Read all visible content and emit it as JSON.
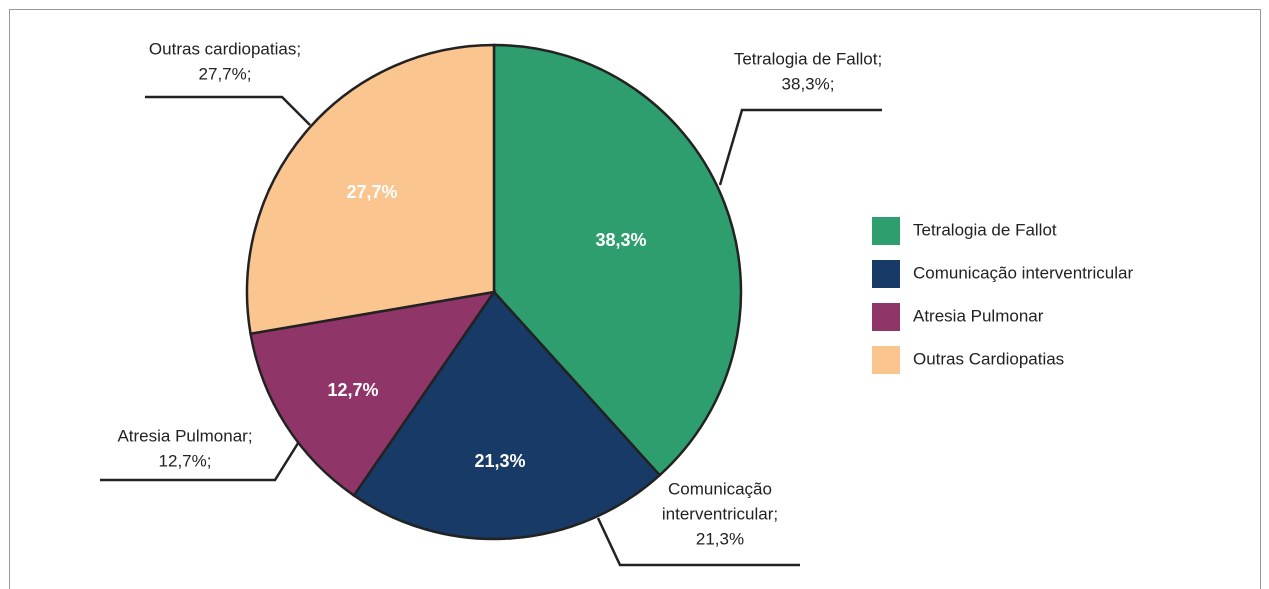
{
  "chart_data": {
    "type": "pie",
    "categories": [
      "Tetralogia de Fallot",
      "Comunicação interventricular",
      "Atresia Pulmonar",
      "Outras Cardiopatias"
    ],
    "values": [
      38.3,
      21.3,
      12.7,
      27.7
    ],
    "value_labels": [
      "38,3%",
      "21,3%",
      "12,7%",
      "27,7%"
    ],
    "colors": [
      "#2e9e6e",
      "#173a66",
      "#8f3567",
      "#fbc58f"
    ],
    "callout_labels": [
      [
        "Tetralogia de Fallot;",
        "38,3%;"
      ],
      [
        "Comunicação",
        "interventricular;",
        "21,3%"
      ],
      [
        "Atresia Pulmonar;",
        "12,7%;"
      ],
      [
        "Outras cardiopatias;",
        "27,7%;"
      ]
    ],
    "legend": "right"
  }
}
